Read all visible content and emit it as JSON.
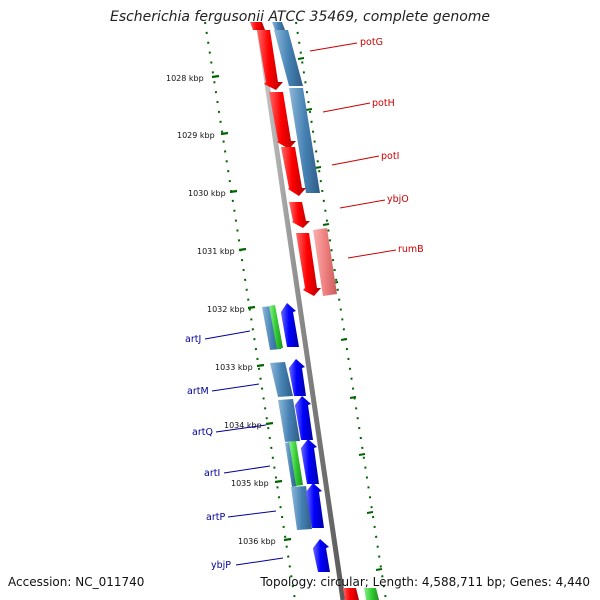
{
  "title": "Escherichia fergusonii ATCC 35469, complete genome",
  "footer": {
    "accession": "Accession: NC_011740",
    "stats": "Topology: circular; Length: 4,588,711 bp; Genes: 4,440"
  },
  "ticks": [
    "1028 kbp",
    "1029 kbp",
    "1030 kbp",
    "1031 kbp",
    "1032 kbp",
    "1033 kbp",
    "1034 kbp",
    "1035 kbp",
    "1036 kbp"
  ],
  "genes_forward": [
    {
      "name": "potG",
      "strand": "+"
    },
    {
      "name": "potH",
      "strand": "+"
    },
    {
      "name": "potI",
      "strand": "+"
    },
    {
      "name": "ybjO",
      "strand": "+"
    },
    {
      "name": "rumB",
      "strand": "+"
    }
  ],
  "genes_reverse": [
    {
      "name": "artJ",
      "strand": "-"
    },
    {
      "name": "artM",
      "strand": "-"
    },
    {
      "name": "artQ",
      "strand": "-"
    },
    {
      "name": "artI",
      "strand": "-"
    },
    {
      "name": "artP",
      "strand": "-"
    },
    {
      "name": "ybjP",
      "strand": "-"
    }
  ],
  "colors": {
    "forward_gene": "#ff0000",
    "forward_gene_light": "#f08080",
    "reverse_gene": "#0000ff",
    "cds_track": "#4682b4",
    "green_feature": "#32cd32",
    "backbone": "#888888",
    "tick": "#006400",
    "forward_label": "#cc0000",
    "reverse_label": "#000099"
  }
}
